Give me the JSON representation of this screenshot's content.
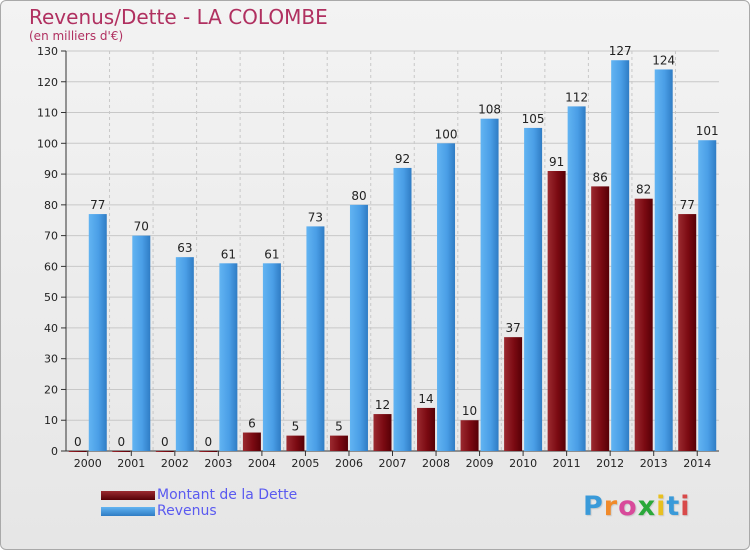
{
  "header": {
    "title": "Revenus/Dette - LA COLOMBE",
    "subtitle": "(en milliers d'€)"
  },
  "legend": {
    "items": [
      {
        "label": "Montant de la Dette",
        "color": "#7b0a12"
      },
      {
        "label": "Revenus",
        "color": "#4a9ee6"
      }
    ]
  },
  "logo": {
    "text": "Proxiti",
    "letter_colors": [
      "#3a9ad9",
      "#f08a2a",
      "#d84a9a",
      "#2aa83a",
      "#e8c020",
      "#3a9ad9",
      "#d84a4a"
    ]
  },
  "colors": {
    "debt": "#7b0a12",
    "revenue": "#4a9ee6",
    "grid": "#c8c8c8"
  },
  "chart_data": {
    "type": "bar",
    "title": "Revenus/Dette - LA COLOMBE",
    "subtitle": "(en milliers d'€)",
    "categories": [
      "2000",
      "2001",
      "2002",
      "2003",
      "2004",
      "2005",
      "2006",
      "2007",
      "2008",
      "2009",
      "2010",
      "2011",
      "2012",
      "2013",
      "2014"
    ],
    "series": [
      {
        "name": "Montant de la Dette",
        "values": [
          0,
          0,
          0,
          0,
          6,
          5,
          5,
          12,
          14,
          10,
          37,
          91,
          86,
          82,
          77
        ]
      },
      {
        "name": "Revenus",
        "values": [
          77,
          70,
          63,
          61,
          61,
          73,
          80,
          92,
          100,
          108,
          105,
          112,
          127,
          124,
          101
        ]
      }
    ],
    "ylim": [
      0,
      130
    ],
    "yticks": [
      0,
      10,
      20,
      30,
      40,
      50,
      60,
      70,
      80,
      90,
      100,
      110,
      120,
      130
    ],
    "grid": true,
    "legend_position": "bottom-left"
  }
}
